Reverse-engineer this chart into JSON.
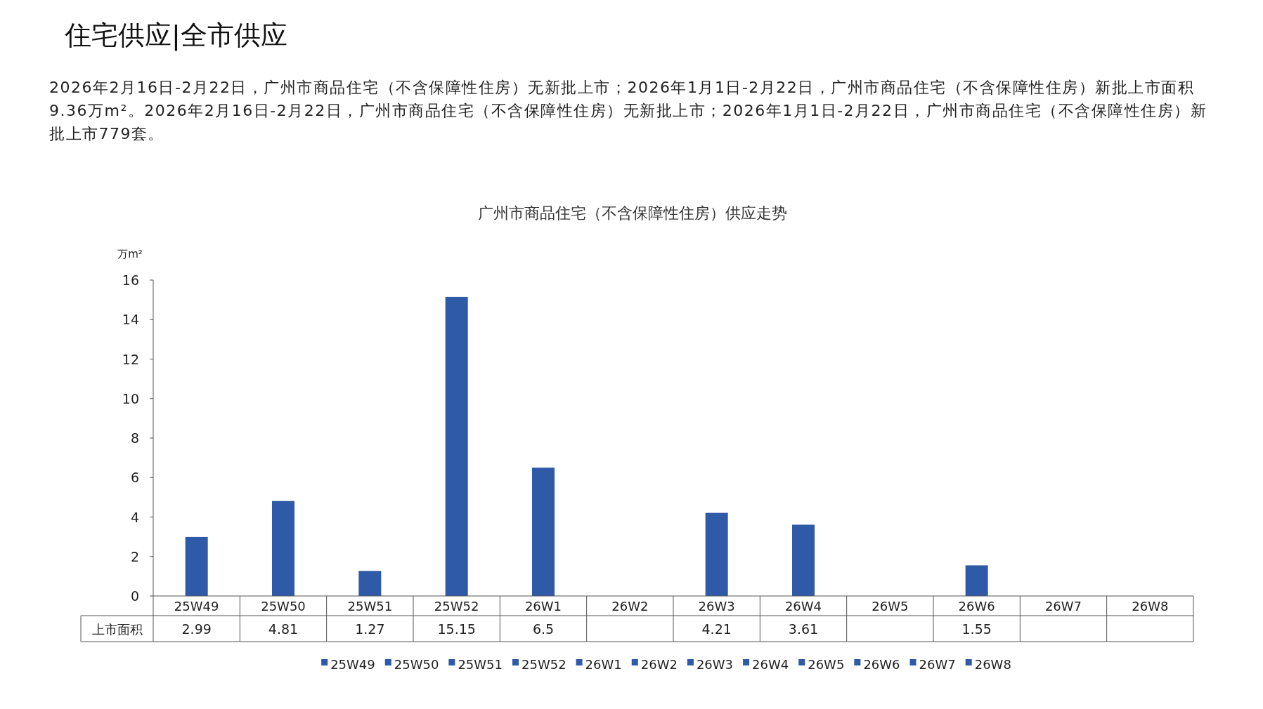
{
  "chart_data": {
    "type": "bar",
    "title": "广州市商品住宅（不含保障性住房）供应走势",
    "annotations": [
      "住宅供应|全市供应",
      "2026年2月16日-2月22日，广州市商品住宅（不含保障性住房）无新批上市；2026年1月1日-2月22日，广州市商品住宅（不含保障性住房）新批上市面积9.36万m²。2026年2月16日-2月22日，广州市商品住宅（不含保障性住房）无新批上市；2026年1月1日-2月22日，广州市商品住宅（不含保障性住房）新批上市779套。"
    ],
    "ylabel": "万m²",
    "categories": [
      "25W49",
      "25W50",
      "25W51",
      "25W52",
      "26W1",
      "26W2",
      "26W3",
      "26W4",
      "26W5",
      "26W6",
      "26W7",
      "26W8"
    ],
    "series": [
      {
        "name": "上市面积",
        "color": "#2f5aa8",
        "values": [
          2.99,
          4.81,
          1.27,
          15.15,
          6.5,
          null,
          4.21,
          3.61,
          null,
          1.55,
          null,
          null
        ]
      }
    ],
    "ylim": [
      0,
      16
    ],
    "yticks": [
      0,
      2,
      4,
      6,
      8,
      10,
      12,
      14,
      16
    ],
    "data_labels": true,
    "legend": "bottom",
    "grid": false
  }
}
